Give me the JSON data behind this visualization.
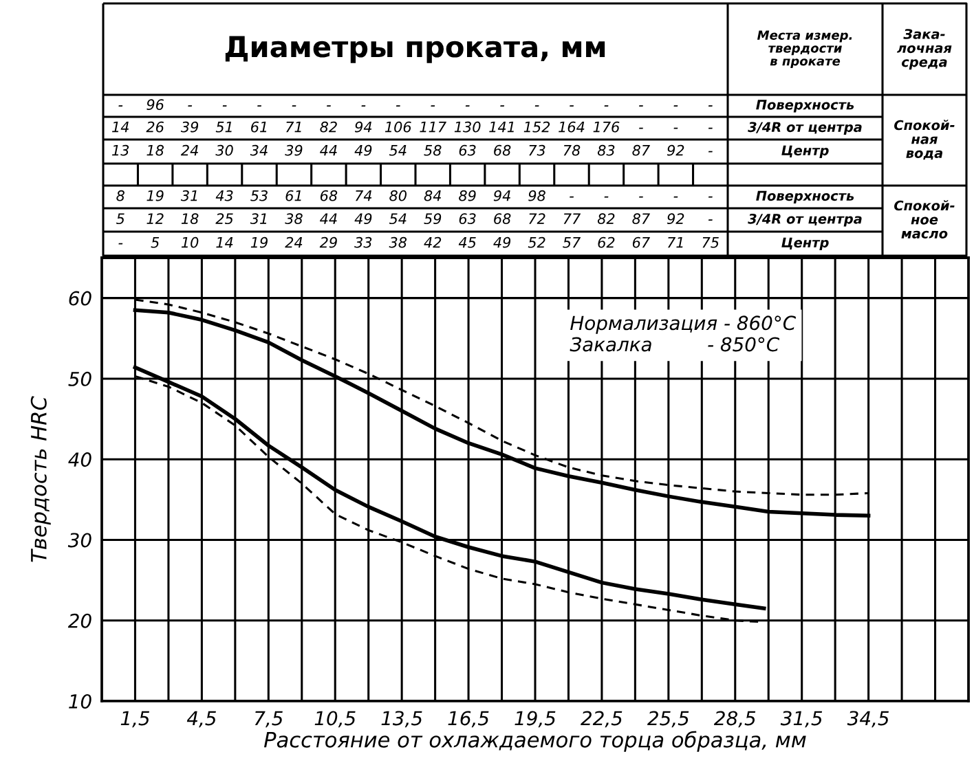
{
  "chart_data": [
    {
      "type": "other",
      "title": "Диаметры проката, мм",
      "annotations": [
        "Места измер.\nтвердости\nв прокате",
        "Зака-\nлочная\nсреда",
        "Поверхность",
        "3/4R от центра",
        "Центр",
        "Поверхность",
        "3/4R от центра",
        "Центр",
        "Спокой-\nная\nвода",
        "Спокой-\nное\nмасло",
        "- 96 - - - - - - - - - - - - - - - -",
        "14 26 39 51 61 71 82 94 106 117 130 141 152 164 176 - - -",
        "13 18 24 30 34 39 44 49 54 58 63 68 73 78 83 87 92 -",
        "8 19 31 43 53 61 68 74 80 84 89 94 98 - - - - -",
        "5 12 18 25 31 38 44 49 54 59 63 68 72 77 82 87 92 -",
        "- 5 10 14 19 24 29 33 38 42 45 49 52 57 62 67 71 75"
      ]
    },
    {
      "type": "line",
      "xlabel": "Расстояние от охлаждаемого торца образца, мм",
      "ylabel": "Твердость HRC",
      "xlim": [
        0,
        39
      ],
      "ylim": [
        10,
        65
      ],
      "xticks": [
        {
          "value": 1.5,
          "label": "1,5"
        },
        {
          "value": 3,
          "label": null
        },
        {
          "value": 4.5,
          "label": "4,5"
        },
        {
          "value": 6,
          "label": null
        },
        {
          "value": 7.5,
          "label": "7,5"
        },
        {
          "value": 9,
          "label": null
        },
        {
          "value": 10.5,
          "label": "10,5"
        },
        {
          "value": 12,
          "label": null
        },
        {
          "value": 13.5,
          "label": "13,5"
        },
        {
          "value": 15,
          "label": null
        },
        {
          "value": 16.5,
          "label": "16,5"
        },
        {
          "value": 18,
          "label": null
        },
        {
          "value": 19.5,
          "label": "19,5"
        },
        {
          "value": 21,
          "label": null
        },
        {
          "value": 22.5,
          "label": "22,5"
        },
        {
          "value": 24,
          "label": null
        },
        {
          "value": 25.5,
          "label": "25,5"
        },
        {
          "value": 27,
          "label": null
        },
        {
          "value": 28.5,
          "label": "28,5"
        },
        {
          "value": 30,
          "label": null
        },
        {
          "value": 31.5,
          "label": "31,5"
        },
        {
          "value": 33,
          "label": null
        },
        {
          "value": 34.5,
          "label": "34,5"
        },
        {
          "value": 36,
          "label": null
        },
        {
          "value": 37.5,
          "label": null
        }
      ],
      "yticks": [
        10,
        20,
        30,
        40,
        50,
        60
      ],
      "grid": true,
      "annotations": [
        "Нормализация - 860°C",
        "Закалка         - 850°C"
      ],
      "series": [
        {
          "color": "#000000",
          "line_style": "solid",
          "x": [
            1.5,
            3,
            4.5,
            6,
            7.5,
            9,
            10.5,
            12,
            13.5,
            15,
            16.5,
            18,
            19.5,
            21,
            22.5,
            24,
            25.5,
            27,
            28.5,
            30,
            31.5,
            33,
            34.5
          ],
          "values": [
            58.5,
            58.2,
            57.3,
            56,
            54.5,
            52.3,
            50.3,
            48.2,
            46,
            43.8,
            42,
            40.6,
            38.9,
            37.9,
            37.1,
            36.2,
            35.4,
            34.7,
            34.1,
            33.5,
            33.3,
            33.1,
            33
          ]
        },
        {
          "color": "#000000",
          "line_style": "dashed",
          "x": [
            1.5,
            3,
            4.5,
            6,
            7.5,
            9,
            10.5,
            12,
            13.5,
            15,
            16.5,
            18,
            19.5,
            21,
            22.5,
            24,
            25.5,
            27,
            28.5,
            30,
            31.5,
            33,
            34.5
          ],
          "values": [
            59.8,
            59.2,
            58.2,
            57,
            55.6,
            54,
            52.4,
            50.6,
            48.6,
            46.6,
            44.5,
            42.3,
            40.5,
            39,
            38,
            37.3,
            36.8,
            36.4,
            36,
            35.8,
            35.6,
            35.6,
            35.8
          ]
        },
        {
          "color": "#000000",
          "line_style": "solid",
          "x": [
            1.5,
            3,
            4.5,
            6,
            7.5,
            9,
            10.5,
            12,
            13.5,
            15,
            16.5,
            18,
            19.5,
            21,
            22.5,
            24,
            25.5,
            27,
            28.5,
            29.8
          ],
          "values": [
            51.4,
            49.6,
            47.8,
            45,
            41.7,
            39,
            36.2,
            34.1,
            32.3,
            30.4,
            29.1,
            28,
            27.3,
            26,
            24.7,
            23.9,
            23.3,
            22.6,
            22,
            21.5
          ]
        },
        {
          "color": "#000000",
          "line_style": "dashed",
          "x": [
            1.5,
            3,
            4.5,
            6,
            7.5,
            9,
            10.5,
            12,
            13.5,
            15,
            16.5,
            18,
            19.5,
            21,
            22.5,
            24,
            25.5,
            27,
            28.5,
            29.8
          ],
          "values": [
            50.3,
            49,
            47,
            44.2,
            40.3,
            37,
            33.2,
            31.2,
            29.7,
            28,
            26.4,
            25.2,
            24.5,
            23.5,
            22.7,
            22,
            21.3,
            20.6,
            20,
            19.8
          ]
        }
      ]
    }
  ]
}
